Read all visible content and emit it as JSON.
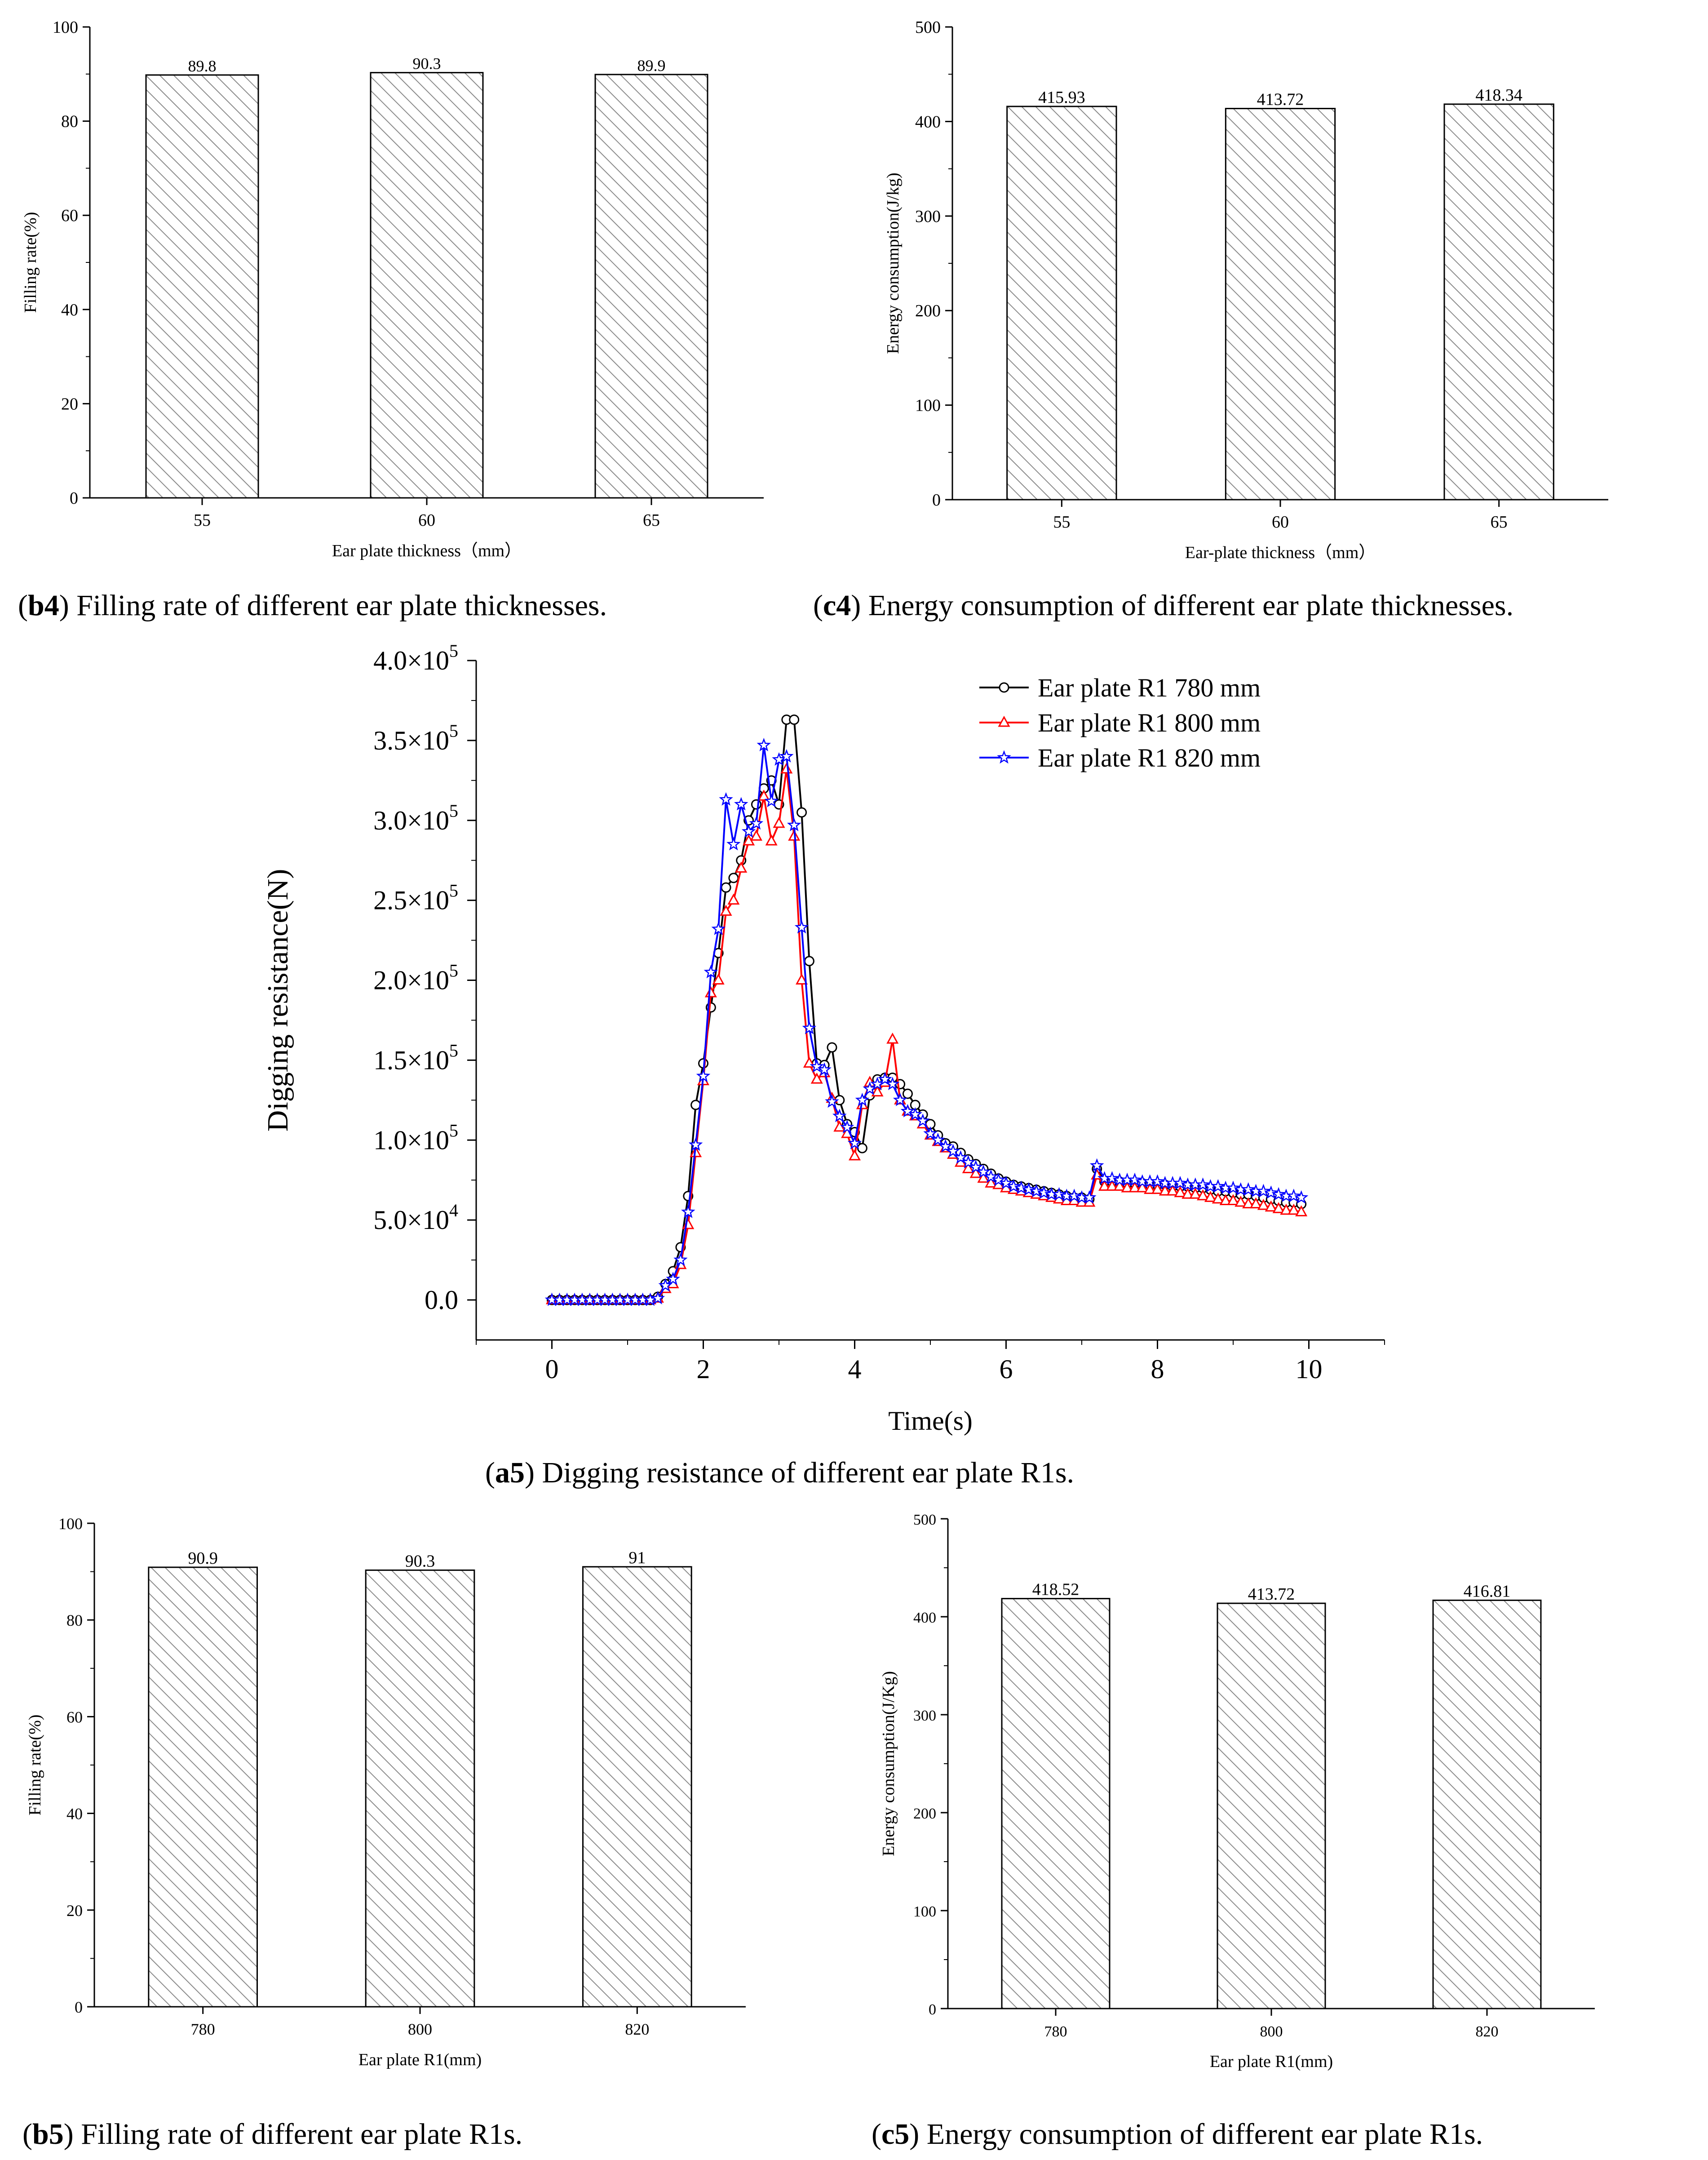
{
  "figures": {
    "b4": {
      "caption_label": "b4",
      "caption_text": "Filling rate of different ear plate thicknesses."
    },
    "c4": {
      "caption_label": "c4",
      "caption_text": "Energy consumption of different ear plate thicknesses."
    },
    "a5": {
      "caption_label": "a5",
      "caption_text": "Digging resistance of different ear plate R1s."
    },
    "b5": {
      "caption_label": "b5",
      "caption_text": "Filling rate of different ear plate R1s."
    },
    "c5": {
      "caption_label": "c5",
      "caption_text": "Energy consumption of different ear plate R1s."
    }
  },
  "colors": {
    "black": "#000000",
    "red": "#ff0000",
    "blue": "#0000ff",
    "hatch": "#888888"
  },
  "chart_data": [
    {
      "id": "b4",
      "type": "bar",
      "xlabel": "Ear plate thickness（mm）",
      "ylabel": "Filling rate(%)",
      "categories": [
        "55",
        "60",
        "65"
      ],
      "values": [
        89.8,
        90.3,
        89.9
      ],
      "value_labels": [
        "89.8",
        "90.3",
        "89.9"
      ],
      "ylim": [
        0,
        100
      ],
      "yticks": [
        0,
        20,
        40,
        60,
        80,
        100
      ],
      "ytick_labels": [
        "0",
        "20",
        "40",
        "60",
        "80",
        "100"
      ]
    },
    {
      "id": "c4",
      "type": "bar",
      "xlabel": "Ear-plate thickness（mm）",
      "ylabel": "Energy consumption(J/kg)",
      "categories": [
        "55",
        "60",
        "65"
      ],
      "values": [
        415.93,
        413.72,
        418.34
      ],
      "value_labels": [
        "415.93",
        "413.72",
        "418.34"
      ],
      "ylim": [
        0,
        500
      ],
      "yticks": [
        0,
        100,
        200,
        300,
        400,
        500
      ],
      "ytick_labels": [
        "0",
        "100",
        "200",
        "300",
        "400",
        "500"
      ]
    },
    {
      "id": "a5",
      "type": "line",
      "xlabel": "Time(s)",
      "ylabel": "Digging resistance(N)",
      "xlim": [
        -1,
        11
      ],
      "ylim": [
        -25000,
        400000
      ],
      "xticks": [
        0,
        2,
        4,
        6,
        8,
        10
      ],
      "xtick_labels": [
        "0",
        "2",
        "4",
        "6",
        "8",
        "10"
      ],
      "yticks": [
        0,
        50000,
        100000,
        150000,
        200000,
        250000,
        300000,
        350000,
        400000
      ],
      "ytick_labels": [
        "0.0",
        "5.0×10",
        "1.0×10",
        "1.5×10",
        "2.0×10",
        "2.5×10",
        "3.0×10",
        "3.5×10",
        "4.0×10"
      ],
      "ytick_exponents": [
        "",
        "4",
        "5",
        "5",
        "5",
        "5",
        "5",
        "5",
        "5"
      ],
      "legend_position": "top-right",
      "series": [
        {
          "name": "Ear plate R1 780 mm",
          "color": "#000000",
          "marker": "circle",
          "x": [
            0,
            0.1,
            0.2,
            0.3,
            0.4,
            0.5,
            0.6,
            0.7,
            0.8,
            0.9,
            1.0,
            1.1,
            1.2,
            1.3,
            1.4,
            1.5,
            1.6,
            1.7,
            1.8,
            1.9,
            2.0,
            2.1,
            2.2,
            2.3,
            2.4,
            2.5,
            2.6,
            2.7,
            2.8,
            2.9,
            3.0,
            3.1,
            3.2,
            3.3,
            3.4,
            3.5,
            3.6,
            3.7,
            3.8,
            3.9,
            4.0,
            4.1,
            4.2,
            4.3,
            4.4,
            4.5,
            4.6,
            4.7,
            4.8,
            4.9,
            5.0,
            5.1,
            5.2,
            5.3,
            5.4,
            5.5,
            5.6,
            5.7,
            5.8,
            5.9,
            6.0,
            6.1,
            6.2,
            6.3,
            6.4,
            6.5,
            6.6,
            6.7,
            6.8,
            6.9,
            7.0,
            7.1,
            7.2,
            7.3,
            7.4,
            7.5,
            7.6,
            7.7,
            7.8,
            7.9,
            8.0,
            8.1,
            8.2,
            8.3,
            8.4,
            8.5,
            8.6,
            8.7,
            8.8,
            8.9,
            9.0,
            9.1,
            9.2,
            9.3,
            9.4,
            9.5,
            9.6,
            9.7,
            9.8,
            9.9
          ],
          "y": [
            0,
            0,
            0,
            0,
            0,
            0,
            0,
            0,
            0,
            0,
            0,
            0,
            0,
            0,
            2000,
            10000,
            18000,
            33000,
            65000,
            122000,
            148000,
            183000,
            217000,
            258000,
            264000,
            275000,
            300000,
            310000,
            320000,
            325000,
            310000,
            363000,
            363000,
            305000,
            212000,
            148000,
            147000,
            158000,
            125000,
            110000,
            105000,
            95000,
            128000,
            138000,
            139000,
            139000,
            135000,
            129000,
            122000,
            116000,
            110000,
            103000,
            98000,
            96000,
            92000,
            88000,
            85000,
            82000,
            79000,
            76000,
            74000,
            72000,
            71000,
            70000,
            69000,
            68000,
            67000,
            66000,
            65000,
            64000,
            64000,
            63000,
            82000,
            74000,
            74000,
            74000,
            73000,
            73000,
            73000,
            72000,
            72000,
            72000,
            71000,
            71000,
            71000,
            70000,
            70000,
            69000,
            68000,
            68000,
            67000,
            66000,
            66000,
            65000,
            64000,
            63000,
            62000,
            61000,
            61000,
            60000
          ]
        },
        {
          "name": "Ear plate R1 800 mm",
          "color": "#ff0000",
          "marker": "triangle",
          "x": [
            0,
            0.1,
            0.2,
            0.3,
            0.4,
            0.5,
            0.6,
            0.7,
            0.8,
            0.9,
            1.0,
            1.1,
            1.2,
            1.3,
            1.4,
            1.5,
            1.6,
            1.7,
            1.8,
            1.9,
            2.0,
            2.1,
            2.2,
            2.3,
            2.4,
            2.5,
            2.6,
            2.7,
            2.8,
            2.9,
            3.0,
            3.1,
            3.2,
            3.3,
            3.4,
            3.5,
            3.6,
            3.7,
            3.8,
            3.9,
            4.0,
            4.1,
            4.2,
            4.3,
            4.4,
            4.5,
            4.6,
            4.7,
            4.8,
            4.9,
            5.0,
            5.1,
            5.2,
            5.3,
            5.4,
            5.5,
            5.6,
            5.7,
            5.8,
            5.9,
            6.0,
            6.1,
            6.2,
            6.3,
            6.4,
            6.5,
            6.6,
            6.7,
            6.8,
            6.9,
            7.0,
            7.1,
            7.2,
            7.3,
            7.4,
            7.5,
            7.6,
            7.7,
            7.8,
            7.9,
            8.0,
            8.1,
            8.2,
            8.3,
            8.4,
            8.5,
            8.6,
            8.7,
            8.8,
            8.9,
            9.0,
            9.1,
            9.2,
            9.3,
            9.4,
            9.5,
            9.6,
            9.7,
            9.8,
            9.9
          ],
          "y": [
            0,
            0,
            0,
            0,
            0,
            0,
            0,
            0,
            0,
            0,
            0,
            0,
            0,
            0,
            1000,
            7000,
            10000,
            22000,
            47000,
            92000,
            137000,
            192000,
            200000,
            243000,
            250000,
            270000,
            287000,
            290000,
            315000,
            287000,
            298000,
            332000,
            290000,
            200000,
            148000,
            138000,
            142000,
            126000,
            108000,
            104000,
            90000,
            122000,
            136000,
            130000,
            136000,
            163000,
            125000,
            118000,
            115000,
            110000,
            103000,
            99000,
            95000,
            91000,
            86000,
            82000,
            79000,
            76000,
            73000,
            72000,
            70000,
            69000,
            68000,
            67000,
            66000,
            65000,
            64000,
            63000,
            62000,
            62000,
            61000,
            61000,
            78000,
            71000,
            71000,
            71000,
            70000,
            70000,
            70000,
            69000,
            69000,
            68000,
            68000,
            67000,
            66000,
            66000,
            65000,
            64000,
            63000,
            62000,
            62000,
            61000,
            60000,
            60000,
            59000,
            58000,
            57000,
            56000,
            56000,
            55000
          ]
        },
        {
          "name": "Ear plate R1 820 mm",
          "color": "#0000ff",
          "marker": "star",
          "x": [
            0,
            0.1,
            0.2,
            0.3,
            0.4,
            0.5,
            0.6,
            0.7,
            0.8,
            0.9,
            1.0,
            1.1,
            1.2,
            1.3,
            1.4,
            1.5,
            1.6,
            1.7,
            1.8,
            1.9,
            2.0,
            2.1,
            2.2,
            2.3,
            2.4,
            2.5,
            2.6,
            2.7,
            2.8,
            2.9,
            3.0,
            3.1,
            3.2,
            3.3,
            3.4,
            3.5,
            3.6,
            3.7,
            3.8,
            3.9,
            4.0,
            4.1,
            4.2,
            4.3,
            4.4,
            4.5,
            4.6,
            4.7,
            4.8,
            4.9,
            5.0,
            5.1,
            5.2,
            5.3,
            5.4,
            5.5,
            5.6,
            5.7,
            5.8,
            5.9,
            6.0,
            6.1,
            6.2,
            6.3,
            6.4,
            6.5,
            6.6,
            6.7,
            6.8,
            6.9,
            7.0,
            7.1,
            7.2,
            7.3,
            7.4,
            7.5,
            7.6,
            7.7,
            7.8,
            7.9,
            8.0,
            8.1,
            8.2,
            8.3,
            8.4,
            8.5,
            8.6,
            8.7,
            8.8,
            8.9,
            9.0,
            9.1,
            9.2,
            9.3,
            9.4,
            9.5,
            9.6,
            9.7,
            9.8,
            9.9
          ],
          "y": [
            0,
            0,
            0,
            0,
            0,
            0,
            0,
            0,
            0,
            0,
            0,
            0,
            0,
            0,
            1000,
            9000,
            13000,
            25000,
            55000,
            97000,
            140000,
            205000,
            232000,
            313000,
            285000,
            310000,
            293000,
            298000,
            347000,
            312000,
            338000,
            340000,
            297000,
            233000,
            170000,
            146000,
            144000,
            124000,
            115000,
            108000,
            98000,
            125000,
            132000,
            135000,
            138000,
            135000,
            125000,
            118000,
            116000,
            112000,
            104000,
            100000,
            96000,
            93000,
            89000,
            86000,
            83000,
            80000,
            77000,
            75000,
            73000,
            71000,
            70000,
            69000,
            68000,
            67000,
            66000,
            66000,
            65000,
            65000,
            64000,
            64000,
            84000,
            76000,
            76000,
            75000,
            75000,
            75000,
            74000,
            74000,
            74000,
            73000,
            73000,
            73000,
            72000,
            72000,
            72000,
            71000,
            71000,
            70000,
            70000,
            69000,
            69000,
            68000,
            68000,
            67000,
            66000,
            65000,
            65000,
            64000
          ]
        }
      ]
    },
    {
      "id": "b5",
      "type": "bar",
      "xlabel": "Ear plate R1(mm)",
      "ylabel": "Filling rate(%)",
      "categories": [
        "780",
        "800",
        "820"
      ],
      "values": [
        90.9,
        90.3,
        91
      ],
      "value_labels": [
        "90.9",
        "90.3",
        "91"
      ],
      "ylim": [
        0,
        100
      ],
      "yticks": [
        0,
        20,
        40,
        60,
        80,
        100
      ],
      "ytick_labels": [
        "0",
        "20",
        "40",
        "60",
        "80",
        "100"
      ]
    },
    {
      "id": "c5",
      "type": "bar",
      "xlabel": "Ear plate R1(mm)",
      "ylabel": "Energy consumption(J/Kg)",
      "categories": [
        "780",
        "800",
        "820"
      ],
      "values": [
        418.52,
        413.72,
        416.81
      ],
      "value_labels": [
        "418.52",
        "413.72",
        "416.81"
      ],
      "ylim": [
        0,
        500
      ],
      "yticks": [
        0,
        100,
        200,
        300,
        400,
        500
      ],
      "ytick_labels": [
        "0",
        "100",
        "200",
        "300",
        "400",
        "500"
      ]
    }
  ]
}
